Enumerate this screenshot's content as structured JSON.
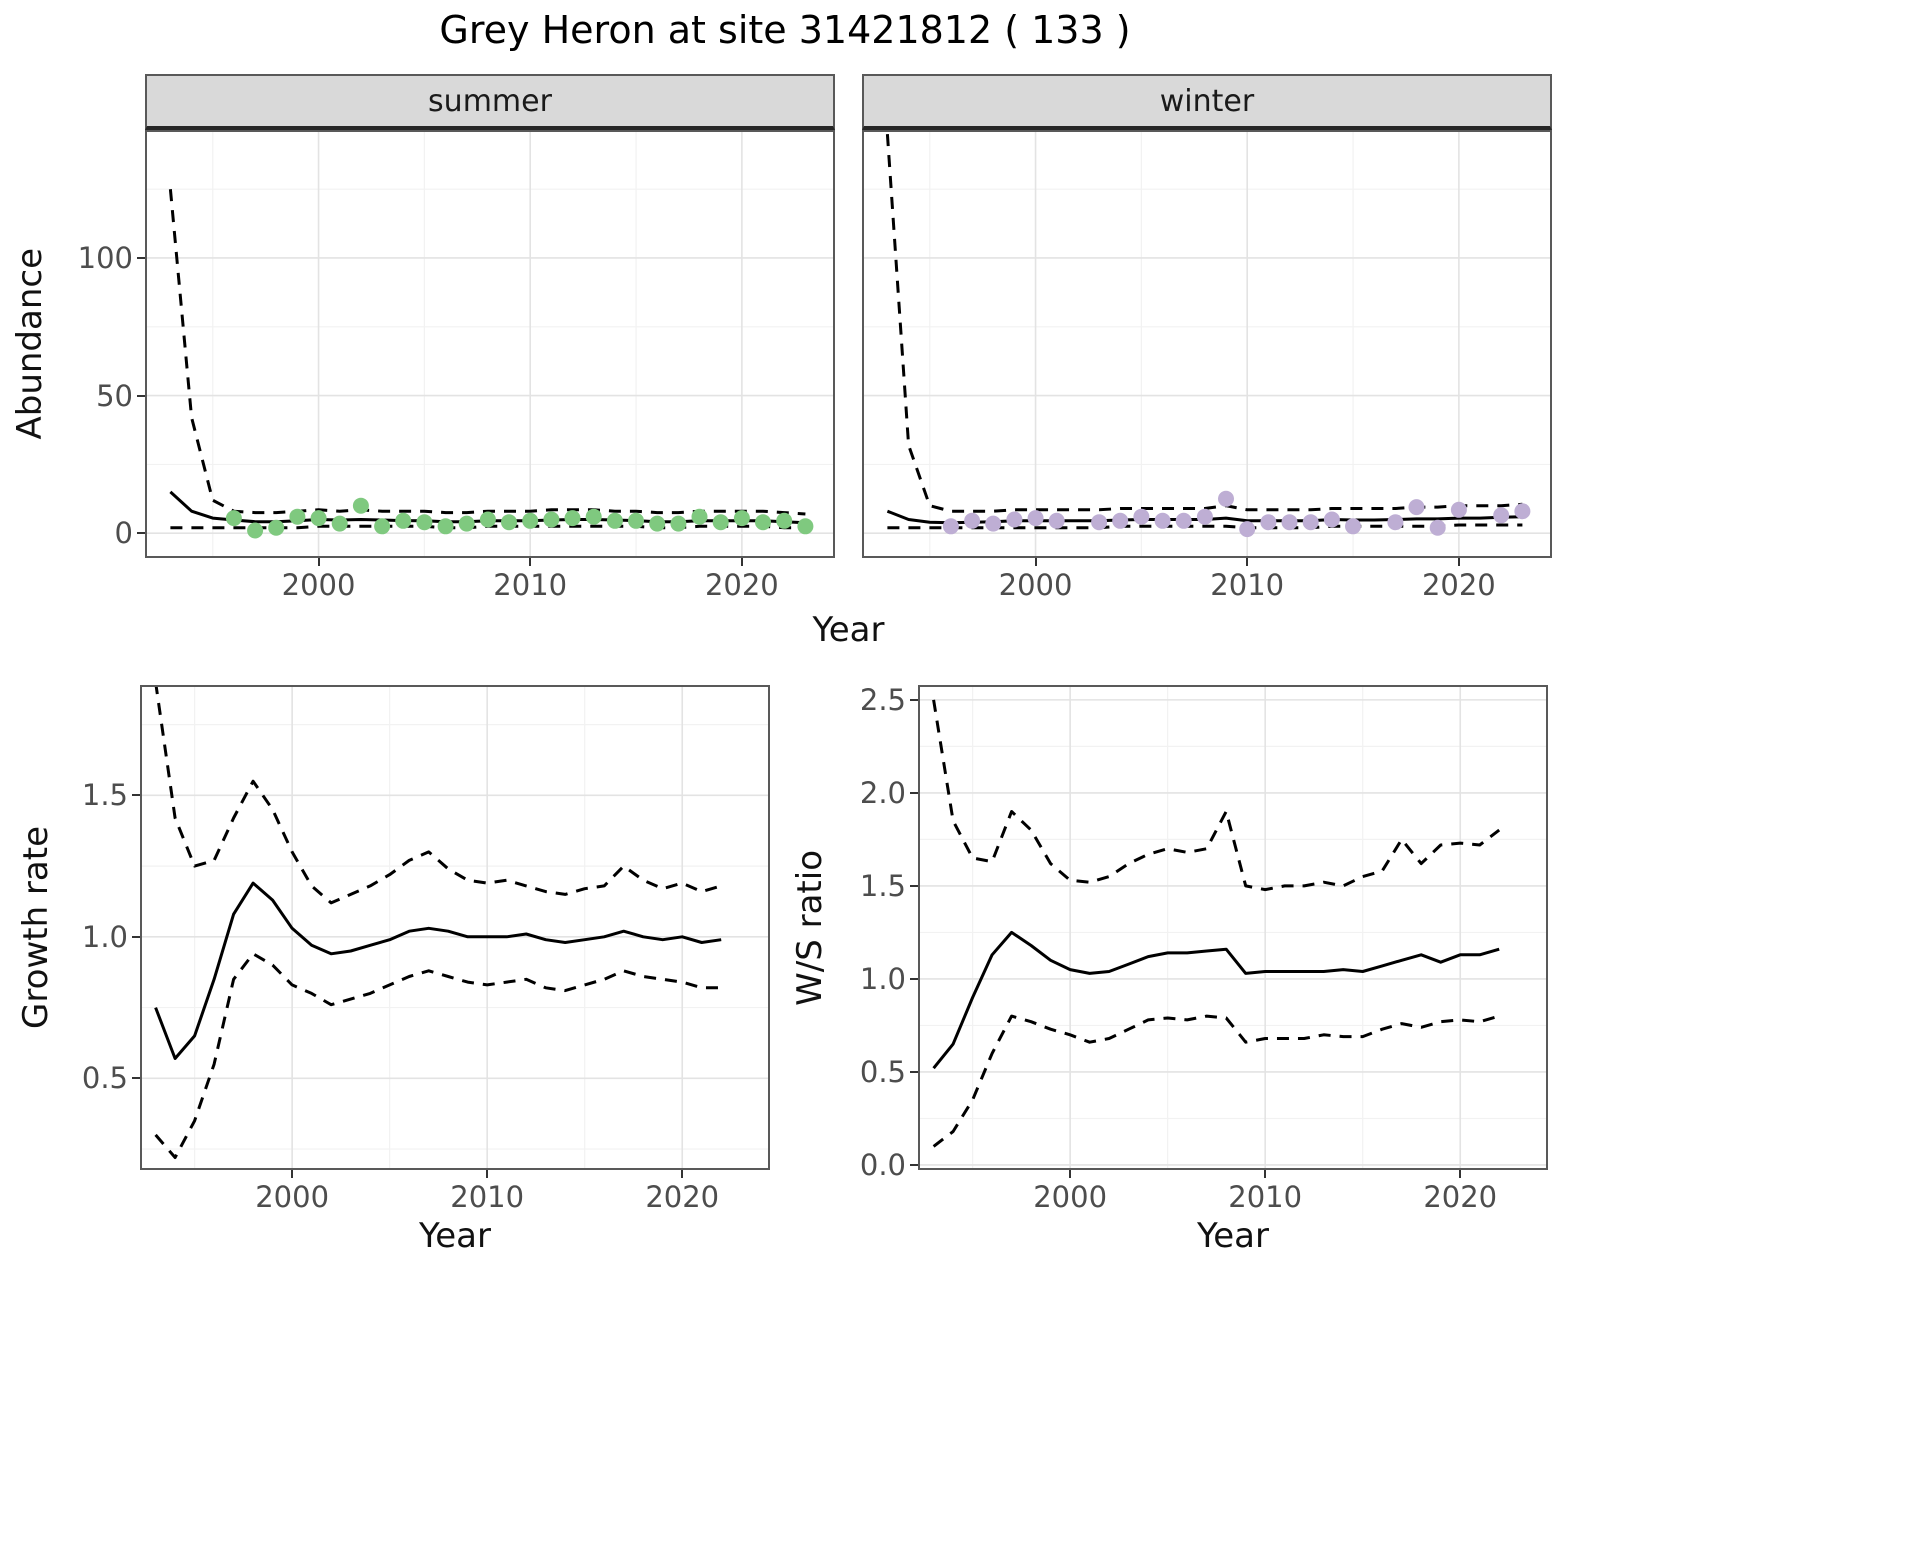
{
  "title": "Grey Heron at site 31421812 ( 133 )",
  "colors": {
    "summer_points": "#7fc97f",
    "winter_points": "#beaed4",
    "line": "#000000",
    "strip_background": "#d9d9d9"
  },
  "chart_data": [
    {
      "id": "abundance-summer",
      "type": "line",
      "facet_label": "summer",
      "xlabel": "Year",
      "ylabel": "Abundance",
      "xlim": [
        1991.8,
        2024.4
      ],
      "ylim": [
        -9,
        146.5
      ],
      "xticks": [
        2000,
        2010,
        2020
      ],
      "xtick_labels": [
        "2000",
        "2010",
        "2020"
      ],
      "xticks_minor": [
        1995,
        2005,
        2015
      ],
      "yticks": [
        0,
        50,
        100
      ],
      "ytick_labels": [
        "0",
        "50",
        "100"
      ],
      "yticks_minor": [
        25,
        75,
        125
      ],
      "x": [
        1993,
        1994,
        1995,
        1996,
        1997,
        1998,
        1999,
        2000,
        2001,
        2002,
        2003,
        2004,
        2005,
        2006,
        2007,
        2008,
        2009,
        2010,
        2011,
        2012,
        2013,
        2014,
        2015,
        2016,
        2017,
        2018,
        2019,
        2020,
        2021,
        2022,
        2023
      ],
      "series": [
        {
          "name": "median",
          "style": "solid",
          "values": [
            15,
            8,
            5.5,
            4.8,
            4.2,
            4.2,
            4.5,
            5,
            4.8,
            5,
            4.8,
            4.6,
            4.5,
            4.2,
            4.2,
            4.5,
            4.5,
            4.5,
            4.8,
            5,
            5,
            4.8,
            4.6,
            4.2,
            4.2,
            4.5,
            4.5,
            4.5,
            4.5,
            4.2,
            3.8
          ]
        },
        {
          "name": "upper-ci",
          "style": "dashed",
          "values": [
            125,
            42,
            12,
            8,
            7.5,
            7.5,
            8,
            8.5,
            8,
            8.5,
            8,
            8,
            8,
            7.5,
            7.5,
            8,
            8,
            8,
            8.5,
            8.5,
            8.5,
            8,
            8,
            7.5,
            7.5,
            8,
            8,
            8,
            8,
            7.5,
            7
          ]
        },
        {
          "name": "lower-ci",
          "style": "dashed",
          "values": [
            2,
            2,
            2,
            2,
            2,
            2,
            2,
            2.5,
            2.5,
            2.5,
            2.5,
            2.5,
            2.5,
            2,
            2,
            2.5,
            2.5,
            2.5,
            2.5,
            2.5,
            2.5,
            2.5,
            2.5,
            2,
            2,
            2.5,
            2.5,
            2.5,
            2.5,
            2,
            2
          ]
        }
      ],
      "points": {
        "name": "observed-counts-summer",
        "color": "#7fc97f",
        "x": [
          1996,
          1997,
          1998,
          1999,
          2000,
          2001,
          2002,
          2003,
          2004,
          2005,
          2006,
          2007,
          2008,
          2009,
          2010,
          2011,
          2012,
          2013,
          2014,
          2015,
          2016,
          2017,
          2018,
          2019,
          2020,
          2021,
          2022,
          2023
        ],
        "y": [
          5.5,
          1,
          2,
          6,
          5.5,
          3.5,
          10,
          2.5,
          4.5,
          4,
          2.5,
          3.5,
          5,
          4,
          4.5,
          5,
          5.5,
          6,
          4.5,
          4.5,
          3.5,
          3.5,
          6,
          4,
          5.5,
          4,
          4.5,
          2.5
        ]
      }
    },
    {
      "id": "abundance-winter",
      "type": "line",
      "facet_label": "winter",
      "xlabel": "Year",
      "ylabel": "Abundance",
      "xlim": [
        1991.8,
        2024.4
      ],
      "ylim": [
        -9,
        146.5
      ],
      "xticks": [
        2000,
        2010,
        2020
      ],
      "xtick_labels": [
        "2000",
        "2010",
        "2020"
      ],
      "xticks_minor": [
        1995,
        2005,
        2015
      ],
      "yticks": [
        0,
        50,
        100
      ],
      "ytick_labels": [
        "0",
        "50",
        "100"
      ],
      "yticks_minor": [
        25,
        75,
        125
      ],
      "x": [
        1993,
        1994,
        1995,
        1996,
        1997,
        1998,
        1999,
        2000,
        2001,
        2002,
        2003,
        2004,
        2005,
        2006,
        2007,
        2008,
        2009,
        2010,
        2011,
        2012,
        2013,
        2014,
        2015,
        2016,
        2017,
        2018,
        2019,
        2020,
        2021,
        2022,
        2023
      ],
      "series": [
        {
          "name": "median",
          "style": "solid",
          "values": [
            8,
            5,
            4,
            3.8,
            4,
            4.2,
            4.5,
            4.5,
            4.5,
            4.5,
            4.5,
            4.8,
            5,
            5,
            5,
            5,
            5.5,
            4.5,
            4.5,
            4.5,
            4.5,
            5,
            4.8,
            4.8,
            5,
            5.2,
            5.2,
            5.5,
            5.5,
            5.8,
            6
          ]
        },
        {
          "name": "upper-ci",
          "style": "dashed",
          "values": [
            145,
            32,
            10,
            8,
            8,
            8,
            8.5,
            8.5,
            8.5,
            8.5,
            8.5,
            9,
            9,
            9,
            9,
            9,
            10,
            8.5,
            8.5,
            8.5,
            8.5,
            9,
            9,
            9,
            9,
            9.5,
            9.5,
            10,
            10,
            10,
            10.5
          ]
        },
        {
          "name": "lower-ci",
          "style": "dashed",
          "values": [
            2,
            2,
            2,
            2,
            2,
            2,
            2,
            2,
            2,
            2,
            2,
            2.5,
            2.5,
            2.5,
            2.5,
            2.5,
            2.5,
            2,
            2,
            2,
            2,
            2.5,
            2.5,
            2.5,
            2.5,
            2.5,
            2.5,
            3,
            3,
            3,
            3
          ]
        }
      ],
      "points": {
        "name": "observed-counts-winter",
        "color": "#beaed4",
        "x": [
          1996,
          1997,
          1998,
          1999,
          2000,
          2001,
          2003,
          2004,
          2005,
          2006,
          2007,
          2008,
          2009,
          2010,
          2011,
          2012,
          2013,
          2014,
          2015,
          2017,
          2018,
          2019,
          2020,
          2022,
          2023
        ],
        "y": [
          2.5,
          4.5,
          3.5,
          5,
          5.5,
          4.5,
          4,
          4.5,
          6,
          4.5,
          4.5,
          6,
          12.5,
          1.5,
          4,
          4,
          4,
          5,
          2.5,
          4,
          9.5,
          2,
          8.5,
          6.5,
          8
        ]
      }
    },
    {
      "id": "growth-rate",
      "type": "line",
      "xlabel": "Year",
      "ylabel": "Growth rate",
      "xlim": [
        1992.2,
        2024.5
      ],
      "ylim": [
        0.176,
        1.89
      ],
      "xticks": [
        2000,
        2010,
        2020
      ],
      "xtick_labels": [
        "2000",
        "2010",
        "2020"
      ],
      "xticks_minor": [
        1995,
        2005,
        2015
      ],
      "yticks": [
        0.5,
        1.0,
        1.5
      ],
      "ytick_labels": [
        "0.5",
        "1.0",
        "1.5"
      ],
      "yticks_minor": [
        0.25,
        0.75,
        1.25,
        1.75
      ],
      "x": [
        1993,
        1994,
        1995,
        1996,
        1997,
        1998,
        1999,
        2000,
        2001,
        2002,
        2003,
        2004,
        2005,
        2006,
        2007,
        2008,
        2009,
        2010,
        2011,
        2012,
        2013,
        2014,
        2015,
        2016,
        2017,
        2018,
        2019,
        2020,
        2021,
        2022
      ],
      "series": [
        {
          "name": "median",
          "style": "solid",
          "values": [
            0.75,
            0.57,
            0.65,
            0.85,
            1.08,
            1.19,
            1.13,
            1.03,
            0.97,
            0.94,
            0.95,
            0.97,
            0.99,
            1.02,
            1.03,
            1.02,
            1.0,
            1.0,
            1.0,
            1.01,
            0.99,
            0.98,
            0.99,
            1.0,
            1.02,
            1.0,
            0.99,
            1.0,
            0.98,
            0.99
          ]
        },
        {
          "name": "upper-ci",
          "style": "dashed",
          "values": [
            1.9,
            1.42,
            1.25,
            1.27,
            1.42,
            1.55,
            1.45,
            1.3,
            1.18,
            1.12,
            1.15,
            1.18,
            1.22,
            1.27,
            1.3,
            1.24,
            1.2,
            1.19,
            1.2,
            1.18,
            1.16,
            1.15,
            1.17,
            1.18,
            1.25,
            1.2,
            1.17,
            1.19,
            1.16,
            1.18
          ]
        },
        {
          "name": "lower-ci",
          "style": "dashed",
          "values": [
            0.3,
            0.22,
            0.35,
            0.55,
            0.85,
            0.94,
            0.9,
            0.83,
            0.8,
            0.76,
            0.78,
            0.8,
            0.83,
            0.86,
            0.88,
            0.86,
            0.84,
            0.83,
            0.84,
            0.85,
            0.82,
            0.81,
            0.83,
            0.85,
            0.88,
            0.86,
            0.85,
            0.84,
            0.82,
            0.82
          ]
        }
      ]
    },
    {
      "id": "ws-ratio",
      "type": "line",
      "xlabel": "Year",
      "ylabel": "W/S ratio",
      "xlim": [
        1992.2,
        2024.5
      ],
      "ylim": [
        -0.027,
        2.58
      ],
      "xticks": [
        2000,
        2010,
        2020
      ],
      "xtick_labels": [
        "2000",
        "2010",
        "2020"
      ],
      "xticks_minor": [
        1995,
        2005,
        2015
      ],
      "yticks": [
        0.0,
        0.5,
        1.0,
        1.5,
        2.0,
        2.5
      ],
      "ytick_labels": [
        "0.0",
        "0.5",
        "1.0",
        "1.5",
        "2.0",
        "2.5"
      ],
      "yticks_minor": [
        0.25,
        0.75,
        1.25,
        1.75,
        2.25
      ],
      "x": [
        1993,
        1994,
        1995,
        1996,
        1997,
        1998,
        1999,
        2000,
        2001,
        2002,
        2003,
        2004,
        2005,
        2006,
        2007,
        2008,
        2009,
        2010,
        2011,
        2012,
        2013,
        2014,
        2015,
        2016,
        2017,
        2018,
        2019,
        2020,
        2021,
        2022
      ],
      "series": [
        {
          "name": "median",
          "style": "solid",
          "values": [
            0.52,
            0.65,
            0.9,
            1.13,
            1.25,
            1.18,
            1.1,
            1.05,
            1.03,
            1.04,
            1.08,
            1.12,
            1.14,
            1.14,
            1.15,
            1.16,
            1.03,
            1.04,
            1.04,
            1.04,
            1.04,
            1.05,
            1.04,
            1.07,
            1.1,
            1.13,
            1.09,
            1.13,
            1.13,
            1.16
          ]
        },
        {
          "name": "upper-ci",
          "style": "dashed",
          "values": [
            2.5,
            1.85,
            1.65,
            1.63,
            1.9,
            1.8,
            1.62,
            1.53,
            1.52,
            1.55,
            1.62,
            1.67,
            1.7,
            1.68,
            1.7,
            1.9,
            1.5,
            1.48,
            1.5,
            1.5,
            1.52,
            1.5,
            1.55,
            1.58,
            1.75,
            1.62,
            1.72,
            1.73,
            1.72,
            1.8
          ]
        },
        {
          "name": "lower-ci",
          "style": "dashed",
          "values": [
            0.1,
            0.18,
            0.35,
            0.6,
            0.8,
            0.77,
            0.73,
            0.7,
            0.66,
            0.68,
            0.73,
            0.78,
            0.79,
            0.78,
            0.8,
            0.79,
            0.66,
            0.68,
            0.68,
            0.68,
            0.7,
            0.69,
            0.69,
            0.73,
            0.76,
            0.74,
            0.77,
            0.78,
            0.77,
            0.8
          ]
        }
      ]
    }
  ]
}
